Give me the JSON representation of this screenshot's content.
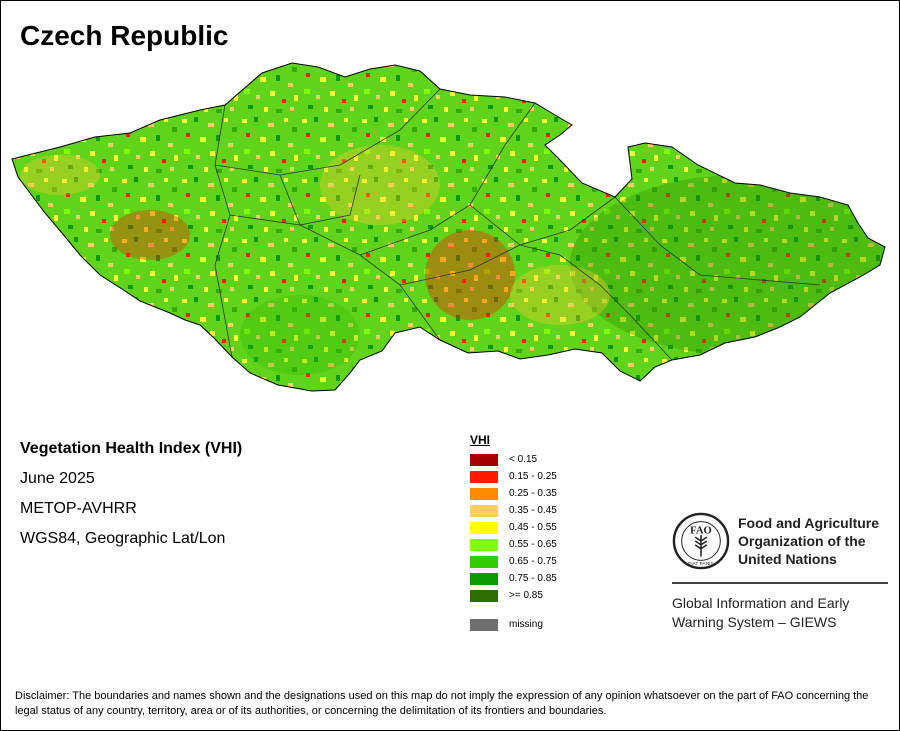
{
  "title": "Czech Republic",
  "info": {
    "index_name": "Vegetation Health Index (VHI)",
    "period": "June 2025",
    "sensor": "METOP-AVHRR",
    "projection": "WGS84, Geographic Lat/Lon"
  },
  "legend": {
    "title": "VHI",
    "classes": [
      {
        "label": "< 0.15",
        "color": "#a50000"
      },
      {
        "label": "0.15 - 0.25",
        "color": "#ff1a00"
      },
      {
        "label": "0.25 - 0.35",
        "color": "#ff8c00"
      },
      {
        "label": "0.35 - 0.45",
        "color": "#ffcc66"
      },
      {
        "label": "0.45 - 0.55",
        "color": "#ffff00"
      },
      {
        "label": "0.55 - 0.65",
        "color": "#80ff00"
      },
      {
        "label": "0.65 - 0.75",
        "color": "#33cc00"
      },
      {
        "label": "0.75 - 0.85",
        "color": "#0a9900"
      },
      {
        "label": ">= 0.85",
        "color": "#2d6e00"
      }
    ],
    "missing": {
      "label": "missing",
      "color": "#6e6e6e"
    }
  },
  "fao": {
    "name_line1": "Food and Agriculture",
    "name_line2": "Organization of the",
    "name_line3": "United Nations",
    "giews_line1": "Global Information and Early",
    "giews_line2": "Warning System – GIEWS",
    "logo_letters": "FAO",
    "logo_ring_text": "FIAT PANIS"
  },
  "disclaimer": "Disclaimer: The boundaries and names shown and the designations used on this map do not imply the expression of any opinion whatsoever on the part of FAO concerning the legal status of any country, territory, area or of its authorities, or concerning the delimitation of its frontiers and boundaries."
}
